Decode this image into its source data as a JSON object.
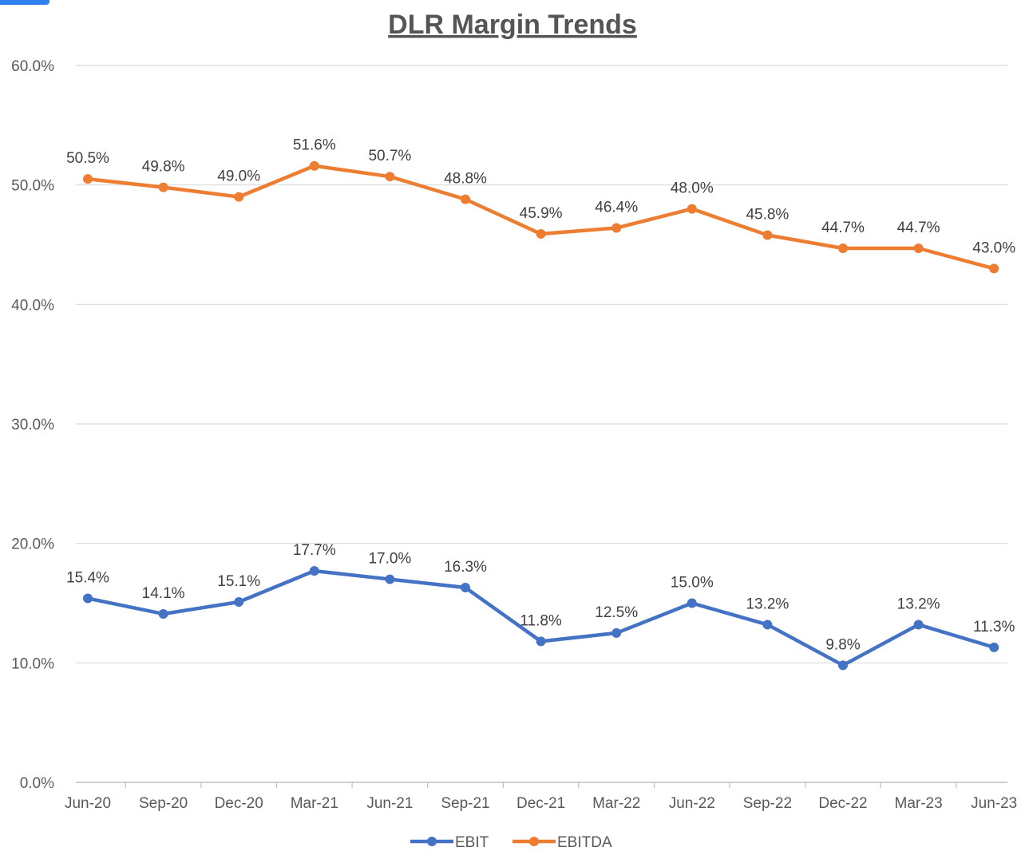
{
  "chart_data": {
    "type": "line",
    "title": "DLR Margin Trends",
    "categories": [
      "Jun-20",
      "Sep-20",
      "Dec-20",
      "Mar-21",
      "Jun-21",
      "Sep-21",
      "Dec-21",
      "Mar-22",
      "Jun-22",
      "Sep-22",
      "Dec-22",
      "Mar-23",
      "Jun-23"
    ],
    "series": [
      {
        "name": "EBIT",
        "color": "#4472c4",
        "values": [
          15.4,
          14.1,
          15.1,
          17.7,
          17.0,
          16.3,
          11.8,
          12.5,
          15.0,
          13.2,
          9.8,
          13.2,
          11.3
        ],
        "labels": [
          "15.4%",
          "14.1%",
          "15.1%",
          "17.7%",
          "17.0%",
          "16.3%",
          "11.8%",
          "12.5%",
          "15.0%",
          "13.2%",
          "9.8%",
          "13.2%",
          "11.3%"
        ]
      },
      {
        "name": "EBITDA",
        "color": "#ed7d31",
        "values": [
          50.5,
          49.8,
          49.0,
          51.6,
          50.7,
          48.8,
          45.9,
          46.4,
          48.0,
          45.8,
          44.7,
          44.7,
          43.0
        ],
        "labels": [
          "50.5%",
          "49.8%",
          "49.0%",
          "51.6%",
          "50.7%",
          "48.8%",
          "45.9%",
          "46.4%",
          "48.0%",
          "45.8%",
          "44.7%",
          "44.7%",
          "43.0%"
        ]
      }
    ],
    "yticks": [
      0,
      10,
      20,
      30,
      40,
      50,
      60
    ],
    "ytick_labels": [
      "0.0%",
      "10.0%",
      "20.0%",
      "30.0%",
      "40.0%",
      "50.0%",
      "60.0%"
    ],
    "ylim": [
      0,
      60
    ],
    "xlabel": "",
    "ylabel": "",
    "grid": true,
    "legend_position": "bottom"
  }
}
